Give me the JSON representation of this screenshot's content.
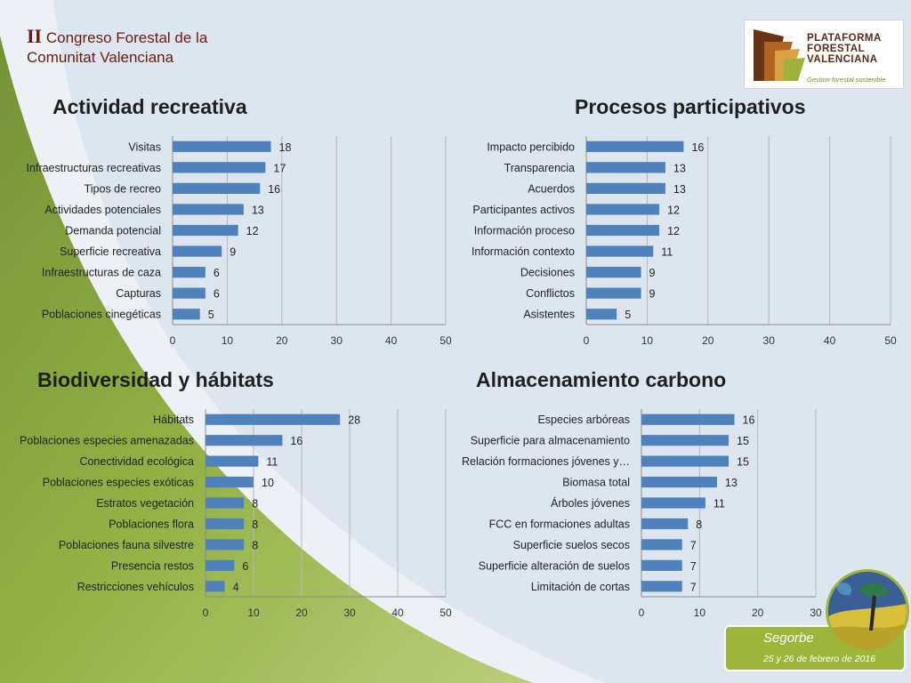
{
  "header": {
    "roman": "II",
    "line1": "Congreso Forestal de la",
    "line2": "Comunitat Valenciana"
  },
  "logo": {
    "lines": [
      "PLATAFORMA",
      "FORESTAL",
      "VALENCIANA"
    ],
    "subtitle": "Gestion forestal sostenible"
  },
  "footer": {
    "place": "Segorbe",
    "date": "25 y 26 de febrero de 2016"
  },
  "colors": {
    "bar": "#4f81bd",
    "title": "#6b1a12",
    "accent": "#9db63a"
  },
  "chart_data": [
    {
      "type": "bar",
      "orientation": "horizontal",
      "title": "Actividad recreativa",
      "categories": [
        "Visitas",
        "Infraestructuras recreativas",
        "Tipos de recreo",
        "Actividades potenciales",
        "Demanda potencial",
        "Superficie recreativa",
        "Infraestructuras de caza",
        "Capturas",
        "Poblaciones cinegéticas"
      ],
      "values": [
        18,
        17,
        16,
        13,
        12,
        9,
        6,
        6,
        5
      ],
      "xlim": [
        0,
        50
      ],
      "ticks": [
        0,
        10,
        20,
        30,
        40,
        50
      ],
      "grid": "vertical"
    },
    {
      "type": "bar",
      "orientation": "horizontal",
      "title": "Procesos participativos",
      "categories": [
        "Impacto percibido",
        "Transparencia",
        "Acuerdos",
        "Participantes activos",
        "Información proceso",
        "Información contexto",
        "Decisiones",
        "Conflictos",
        "Asistentes"
      ],
      "values": [
        16,
        13,
        13,
        12,
        12,
        11,
        9,
        9,
        5
      ],
      "xlim": [
        0,
        50
      ],
      "ticks": [
        0,
        10,
        20,
        30,
        40,
        50
      ],
      "grid": "vertical"
    },
    {
      "type": "bar",
      "orientation": "horizontal",
      "title": "Biodiversidad y hábitats",
      "categories": [
        "Hábitats",
        "Poblaciones especies amenazadas",
        "Conectividad ecológica",
        "Poblaciones especies exóticas",
        "Estratos vegetación",
        "Poblaciones flora",
        "Poblaciones fauna silvestre",
        "Presencia restos",
        "Restricciones vehículos"
      ],
      "values": [
        28,
        16,
        11,
        10,
        8,
        8,
        8,
        6,
        4
      ],
      "xlim": [
        0,
        50
      ],
      "ticks": [
        0,
        10,
        20,
        30,
        40,
        50
      ],
      "grid": "vertical"
    },
    {
      "type": "bar",
      "orientation": "horizontal",
      "title": "Almacenamiento carbono",
      "categories": [
        "Especies arbóreas",
        "Superficie para almacenamiento",
        "Relación formaciones jóvenes y…",
        "Biomasa total",
        "Árboles jóvenes",
        "FCC en formaciones adultas",
        "Superficie suelos secos",
        "Superficie alteración de suelos",
        "Limitación de cortas"
      ],
      "values": [
        16,
        15,
        15,
        13,
        11,
        8,
        7,
        7,
        7
      ],
      "xlim": [
        0,
        30
      ],
      "ticks": [
        0,
        10,
        20,
        30
      ],
      "grid": "vertical"
    }
  ]
}
